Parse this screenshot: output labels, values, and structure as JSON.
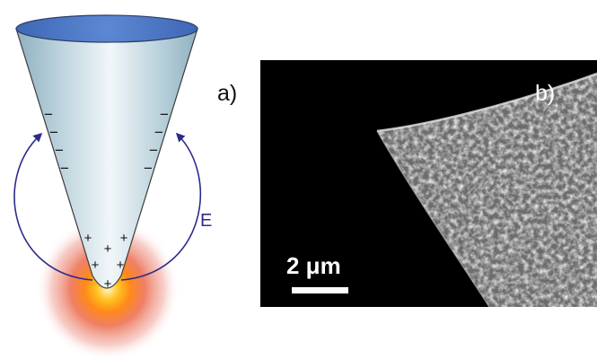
{
  "panel_a": {
    "label": "a)",
    "field_label": "E",
    "minus_sign": "−",
    "plus_sign": "+",
    "colors": {
      "cone_top": "#4a78c8",
      "cone_body": "#c9dde6",
      "field_lines": "#2c2b8c",
      "glow_core": "#ff9a1a",
      "glow_outer": "#e8705a"
    }
  },
  "panel_b": {
    "label": "b)",
    "scale_bar_label": "2 μm",
    "background": "#000000"
  }
}
